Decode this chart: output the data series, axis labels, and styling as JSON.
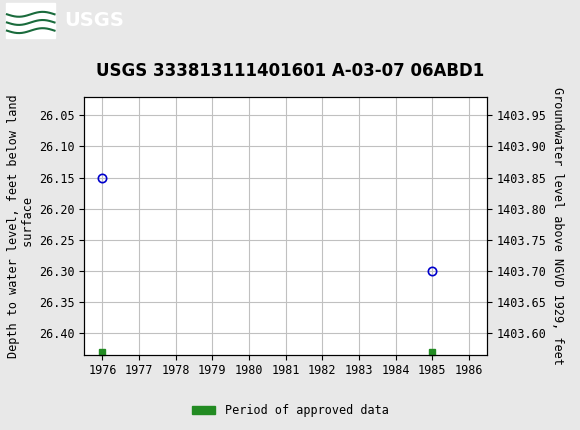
{
  "title": "USGS 333813111401601 A-03-07 06ABD1",
  "ylabel_left": "Depth to water level, feet below land\n surface",
  "ylabel_right": "Groundwater level above NGVD 1929, feet",
  "xlim": [
    1975.5,
    1986.5
  ],
  "ylim_left": [
    26.435,
    26.02
  ],
  "ylim_right": [
    1403.565,
    1403.98
  ],
  "xticks": [
    1976,
    1977,
    1978,
    1979,
    1980,
    1981,
    1982,
    1983,
    1984,
    1985,
    1986
  ],
  "yticks_left": [
    26.05,
    26.1,
    26.15,
    26.2,
    26.25,
    26.3,
    26.35,
    26.4
  ],
  "yticks_right": [
    1403.6,
    1403.65,
    1403.7,
    1403.75,
    1403.8,
    1403.85,
    1403.9,
    1403.95
  ],
  "circle_points_x": [
    1976,
    1985
  ],
  "circle_points_y": [
    26.15,
    26.3
  ],
  "square_points_x": [
    1976,
    1985
  ],
  "square_points_y": [
    26.43,
    26.43
  ],
  "circle_color": "#0000cc",
  "square_color": "#228B22",
  "header_color": "#1a6b3c",
  "header_text_color": "#ffffff",
  "background_color": "#e8e8e8",
  "plot_bg_color": "#ffffff",
  "grid_color": "#c0c0c0",
  "legend_label": "Period of approved data",
  "title_fontsize": 12,
  "axis_label_fontsize": 8.5,
  "tick_fontsize": 8.5
}
